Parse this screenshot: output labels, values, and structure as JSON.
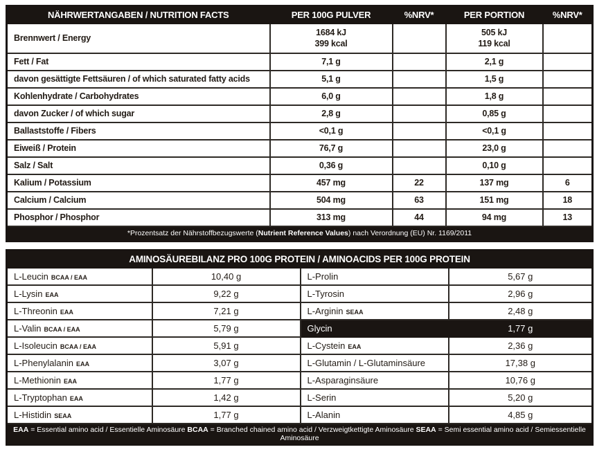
{
  "colors": {
    "bar_background": "#1a1512",
    "text": "#221b15",
    "grid_border": "#2d2925",
    "page_background": "#ffffff",
    "bar_text": "#ffffff"
  },
  "nutrition": {
    "headers": [
      "NÄHRWERTANGABEN / NUTRITION FACTS",
      "PER 100G PULVER",
      "%NRV*",
      "PER PORTION",
      "%NRV*"
    ],
    "rows": [
      {
        "label": "Brennwert / Energy",
        "per100g": "1684 kJ\n399 kcal",
        "nrv100": "",
        "portion": "505 kJ\n119 kcal",
        "nrvPortion": "",
        "energy": true
      },
      {
        "label": "Fett / Fat",
        "per100g": "7,1 g",
        "nrv100": "",
        "portion": "2,1 g",
        "nrvPortion": ""
      },
      {
        "label": "davon gesättigte Fettsäuren / of which saturated fatty acids",
        "per100g": "5,1 g",
        "nrv100": "",
        "portion": "1,5 g",
        "nrvPortion": ""
      },
      {
        "label": "Kohlenhydrate / Carbohydrates",
        "per100g": "6,0 g",
        "nrv100": "",
        "portion": "1,8 g",
        "nrvPortion": ""
      },
      {
        "label": "davon Zucker / of which sugar",
        "per100g": "2,8 g",
        "nrv100": "",
        "portion": "0,85 g",
        "nrvPortion": ""
      },
      {
        "label": "Ballaststoffe / Fibers",
        "per100g": "<0,1 g",
        "nrv100": "",
        "portion": "<0,1 g",
        "nrvPortion": ""
      },
      {
        "label": "Eiweiß / Protein",
        "per100g": "76,7 g",
        "nrv100": "",
        "portion": "23,0 g",
        "nrvPortion": ""
      },
      {
        "label": "Salz / Salt",
        "per100g": "0,36 g",
        "nrv100": "",
        "portion": "0,10 g",
        "nrvPortion": ""
      },
      {
        "label": "Kalium / Potassium",
        "per100g": "457 mg",
        "nrv100": "22",
        "portion": "137 mg",
        "nrvPortion": "6"
      },
      {
        "label": "Calcium / Calcium",
        "per100g": "504 mg",
        "nrv100": "63",
        "portion": "151 mg",
        "nrvPortion": "18"
      },
      {
        "label": "Phosphor / Phosphor",
        "per100g": "313 mg",
        "nrv100": "44",
        "portion": "94 mg",
        "nrvPortion": "13"
      }
    ],
    "footnote": {
      "prefix": "*Prozentsatz der Nährstoffbezugswerte (",
      "bold": "Nutrient Reference Values",
      "suffix": ") nach Verordnung (EU) Nr. 1169/2011"
    }
  },
  "amino": {
    "title": "AMINOSÄUREBILANZ PRO 100G PROTEIN / AMINOACIDS PER 100G PROTEIN",
    "left": [
      {
        "name": "L-Leucin",
        "tag": "BCAA / EAA",
        "value": "10,40 g"
      },
      {
        "name": "L-Lysin",
        "tag": "EAA",
        "value": "9,22 g"
      },
      {
        "name": "L-Threonin",
        "tag": "EAA",
        "value": "7,21 g"
      },
      {
        "name": "L-Valin",
        "tag": "BCAA / EAA",
        "value": "5,79 g"
      },
      {
        "name": "L-Isoleucin",
        "tag": "BCAA / EAA",
        "value": "5,91 g"
      },
      {
        "name": "L-Phenylalanin",
        "tag": "EAA",
        "value": "3,07 g"
      },
      {
        "name": "L-Methionin",
        "tag": "EAA",
        "value": "1,77 g"
      },
      {
        "name": "L-Tryptophan",
        "tag": "EAA",
        "value": "1,42 g"
      },
      {
        "name": "L-Histidin",
        "tag": "SEAA",
        "value": "1,77 g"
      }
    ],
    "right": [
      {
        "name": "L-Prolin",
        "tag": "",
        "value": "5,67 g"
      },
      {
        "name": "L-Tyrosin",
        "tag": "",
        "value": "2,96 g"
      },
      {
        "name": "L-Arginin",
        "tag": "SEAA",
        "value": "2,48 g"
      },
      {
        "name": "Glycin",
        "tag": "",
        "value": "1,77 g",
        "highlight": true
      },
      {
        "name": "L-Cystein",
        "tag": "EAA",
        "value": "2,36 g"
      },
      {
        "name": "L-Glutamin / L-Glutaminsäure",
        "tag": "",
        "value": "17,38 g"
      },
      {
        "name": "L-Asparaginsäure",
        "tag": "",
        "value": "10,76 g"
      },
      {
        "name": "L-Serin",
        "tag": "",
        "value": "5,20 g"
      },
      {
        "name": "L-Alanin",
        "tag": "",
        "value": "4,85 g"
      }
    ],
    "legend": [
      {
        "term": "EAA",
        "text": " = Essential amino acid / Essentielle Aminosäure "
      },
      {
        "term": "BCAA",
        "text": " = Branched chained amino acid / Verzweigtkettigte Aminosäure "
      },
      {
        "term": "SEAA",
        "text": " = Semi essential amino acid / Semiessentielle Aminosäure"
      }
    ]
  }
}
